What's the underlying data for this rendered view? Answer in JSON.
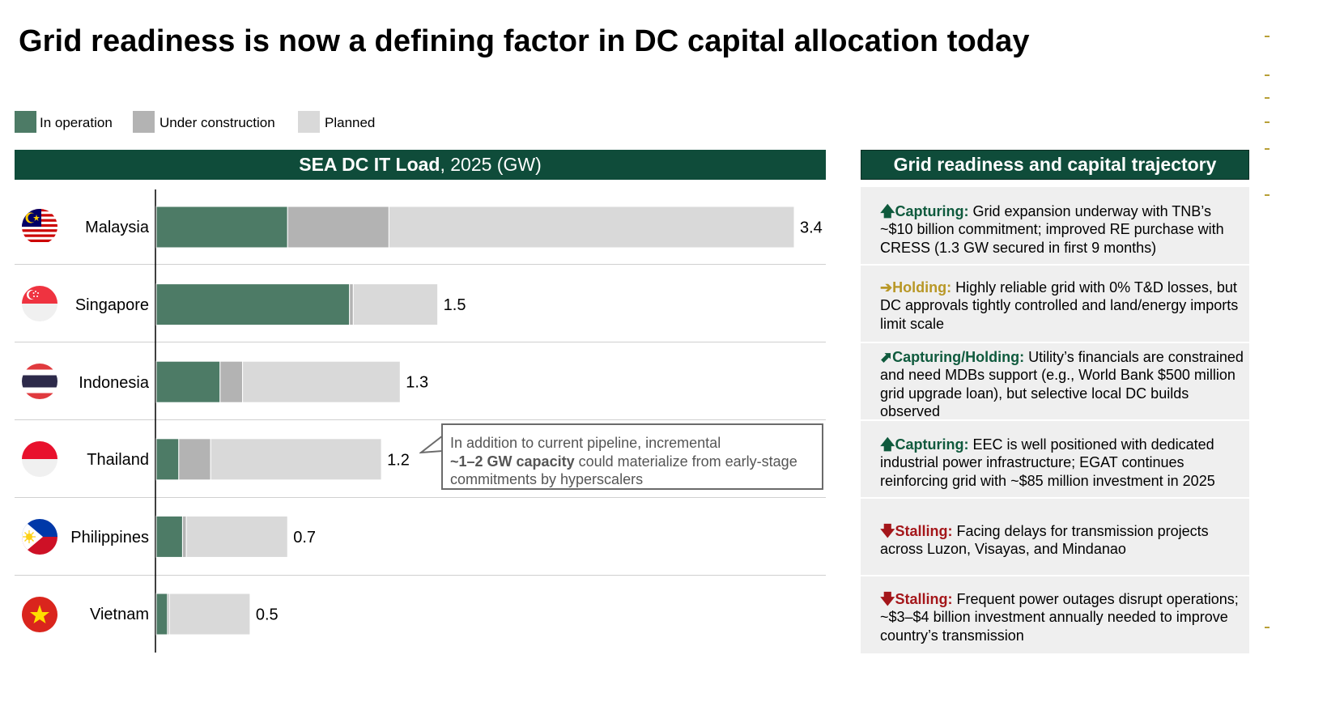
{
  "title": "Grid readiness is now a defining factor in DC capital allocation today",
  "legend": [
    {
      "label": "In operation",
      "color": "#4d7b66"
    },
    {
      "label": "Under construction",
      "color": "#b3b3b3"
    },
    {
      "label": "Planned",
      "color": "#d9d9d9"
    }
  ],
  "chart_header": {
    "bold": "SEA DC IT Load",
    "rest": ", 2025 (GW)"
  },
  "right_header": "Grid readiness and capital trajectory",
  "chart_data": {
    "type": "bar",
    "orientation": "horizontal",
    "stacked": true,
    "title": "SEA DC IT Load, 2025 (GW)",
    "categories": [
      "Malaysia",
      "Singapore",
      "Indonesia",
      "Thailand",
      "Philippines",
      "Vietnam"
    ],
    "series": [
      {
        "name": "In operation",
        "values": [
          0.7,
          1.03,
          0.34,
          0.12,
          0.14,
          0.06
        ]
      },
      {
        "name": "Under construction",
        "values": [
          0.54,
          0.02,
          0.12,
          0.17,
          0.02,
          0.01
        ]
      },
      {
        "name": "Planned",
        "values": [
          2.16,
          0.45,
          0.84,
          0.91,
          0.54,
          0.43
        ]
      }
    ],
    "totals": [
      3.4,
      1.5,
      1.3,
      1.2,
      0.7,
      0.5
    ],
    "total_labels": [
      "3.4",
      "1.5",
      "1.3",
      "1.2",
      "0.7",
      "0.5"
    ],
    "xlim": [
      0,
      3.4
    ],
    "legend_position": "top-left"
  },
  "callout": {
    "line1": "In addition to current pipeline, incremental",
    "bold": "~1–2 GW capacity",
    "rest": " could materialize from early-stage",
    "line3": "commitments by hyperscalers"
  },
  "trajectory": [
    {
      "country": "Malaysia",
      "icon": "arrow-up-icon",
      "arrow": "🡅",
      "status": "Capturing:",
      "status_type": "cap",
      "text": " Grid expansion underway with TNB’s ~$10 billion commitment; improved RE purchase with CRESS (1.3 GW secured in first 9 months)"
    },
    {
      "country": "Singapore",
      "icon": "arrow-right-icon",
      "arrow": "➔",
      "status": "Holding:",
      "status_type": "hold",
      "text": " Highly reliable grid with 0% T&D losses, but DC approvals tightly controlled and land/energy imports limit scale"
    },
    {
      "country": "Indonesia",
      "icon": "arrow-up-right-icon",
      "arrow": "⬈",
      "status": "Capturing/Holding:",
      "status_type": "cap",
      "text": " Utility’s financials are constrained and need MDBs support (e.g., World Bank $500 million grid upgrade loan), but selective local DC builds observed"
    },
    {
      "country": "Thailand",
      "icon": "arrow-up-icon",
      "arrow": "🡅",
      "status": "Capturing:",
      "status_type": "cap",
      "text": " EEC is well positioned with dedicated industrial power infrastructure; EGAT continues reinforcing grid with ~$85 million investment in 2025"
    },
    {
      "country": "Philippines",
      "icon": "arrow-down-icon",
      "arrow": "🡇",
      "status": "Stalling:",
      "status_type": "stall",
      "text": " Facing delays for transmission projects across Luzon, Visayas, and Mindanao"
    },
    {
      "country": "Vietnam",
      "icon": "arrow-down-icon",
      "arrow": "🡇",
      "status": "Stalling:",
      "status_type": "stall",
      "text": " Frequent power outages disrupt operations; ~$3–$4 billion investment annually needed to improve country’s transmission"
    }
  ]
}
